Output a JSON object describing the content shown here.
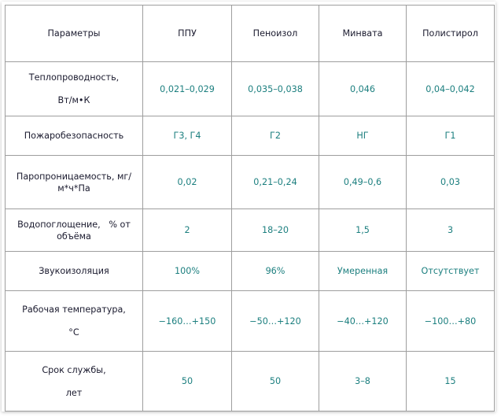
{
  "table": {
    "header": {
      "param": "Параметры",
      "cols": [
        "ППУ",
        "Пеноизол",
        "Минвата",
        "Полистирол"
      ]
    },
    "rows": [
      {
        "param_line1": "Теплопроводность,",
        "param_line2": "Вт/м•К",
        "values": [
          "0,021–0,029",
          "0,035–0,038",
          "0,046",
          "0,04–0,042"
        ]
      },
      {
        "param_line1": "Пожаробезопасность",
        "values": [
          "Г3, Г4",
          "Г2",
          "НГ",
          "Г1"
        ]
      },
      {
        "param_line1": "Паропроницаемость, мг/",
        "param_line2": "м*ч*Па",
        "values": [
          "0,02",
          "0,21–0,24",
          "0,49–0,6",
          "0,03"
        ]
      },
      {
        "param_line1": "Водопоглощение,   % от",
        "param_line2": "объёма",
        "values": [
          "2",
          "18–20",
          "1,5",
          "3"
        ]
      },
      {
        "param_line1": "Звукоизоляция",
        "values": [
          "100%",
          "96%",
          "Умеренная",
          "Отсутствует"
        ]
      },
      {
        "param_line1": "Рабочая температура,",
        "param_line2": "°С",
        "values": [
          "−160…+150",
          "−50…+120",
          "−40…+120",
          "−100…+80"
        ]
      },
      {
        "param_line1": "Срок службы,",
        "param_line2": "лет",
        "values": [
          "50",
          "50",
          "3–8",
          "15"
        ]
      }
    ]
  },
  "colors": {
    "header_text": "#1a1a2e",
    "value_text": "#1c7f7f",
    "border": "#9e9e9e"
  }
}
